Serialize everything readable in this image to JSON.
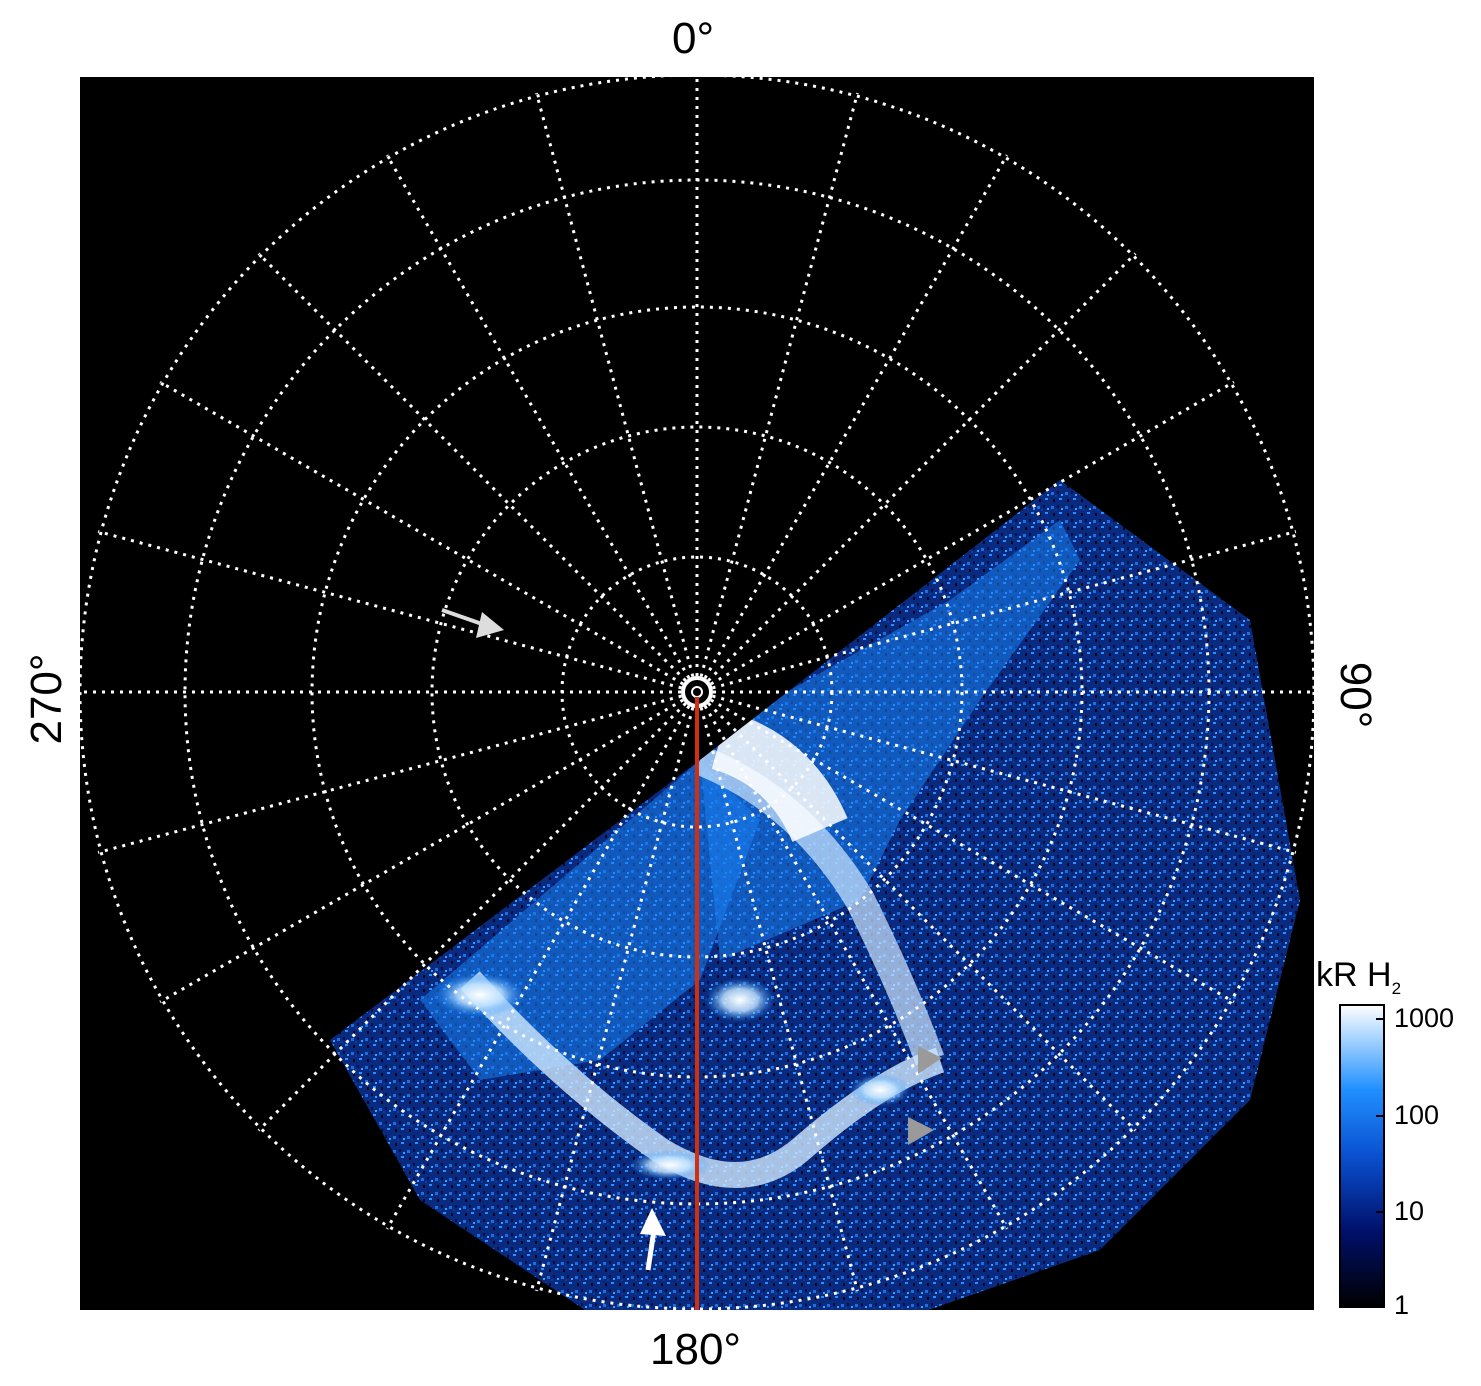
{
  "axis_labels": {
    "top": "0°",
    "right": "90°",
    "bottom": "180°",
    "left": "270°"
  },
  "colorbar": {
    "title": "kR H",
    "title_sub": "2",
    "ticks": [
      "1000",
      "100",
      "10",
      "1"
    ],
    "scale": "log"
  },
  "colors": {
    "background_plot": "#000000",
    "grid": "#ffffff",
    "meridian_line": "#d03010",
    "aurora_low": "#001060",
    "aurora_mid": "#1a8fff",
    "aurora_high": "#ffffff",
    "arrow_white": "#ffffff",
    "arrow_gray": "#9a9a9a"
  }
}
